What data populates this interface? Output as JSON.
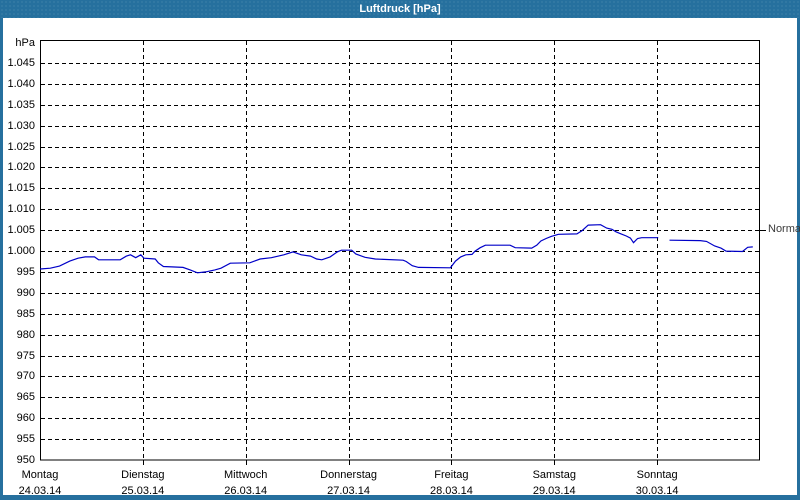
{
  "window": {
    "title": "Luftdruck [hPa]"
  },
  "colors": {
    "titlebar_bg": "#26709e",
    "titlebar_text": "#ffffff",
    "window_border": "#26709e",
    "curve": "#0000c8",
    "grid": "#000000",
    "axis_text": "#000000",
    "normal_text": "#3a3a3a",
    "background": "#ffffff"
  },
  "chart_data": {
    "type": "line",
    "title": "Luftdruck [hPa]",
    "ylabel": "hPa",
    "xlabel": "",
    "grid": "dashed",
    "legend": "none",
    "y_axis": {
      "unit_label": "hPa",
      "min": 950,
      "max": 1050,
      "tick_step": 5,
      "ticks": [
        {
          "value": 1045,
          "label": "1.045"
        },
        {
          "value": 1040,
          "label": "1.040"
        },
        {
          "value": 1035,
          "label": "1.035"
        },
        {
          "value": 1030,
          "label": "1.030"
        },
        {
          "value": 1025,
          "label": "1.025"
        },
        {
          "value": 1020,
          "label": "1.020"
        },
        {
          "value": 1015,
          "label": "1.015"
        },
        {
          "value": 1010,
          "label": "1.010"
        },
        {
          "value": 1005,
          "label": "1.005"
        },
        {
          "value": 1000,
          "label": "1.000"
        },
        {
          "value": 995,
          "label": "995"
        },
        {
          "value": 990,
          "label": "990"
        },
        {
          "value": 985,
          "label": "985"
        },
        {
          "value": 980,
          "label": "980"
        },
        {
          "value": 975,
          "label": "975"
        },
        {
          "value": 970,
          "label": "970"
        },
        {
          "value": 965,
          "label": "965"
        },
        {
          "value": 960,
          "label": "960"
        },
        {
          "value": 955,
          "label": "955"
        },
        {
          "value": 950,
          "label": "950"
        }
      ]
    },
    "x_axis": {
      "unit": "days",
      "range_days": [
        0,
        7
      ],
      "days": [
        {
          "name": "Montag",
          "date": "24.03.14"
        },
        {
          "name": "Dienstag",
          "date": "25.03.14"
        },
        {
          "name": "Mittwoch",
          "date": "26.03.14"
        },
        {
          "name": "Donnerstag",
          "date": "27.03.14"
        },
        {
          "name": "Freitag",
          "date": "28.03.14"
        },
        {
          "name": "Samstag",
          "date": "29.03.14"
        },
        {
          "name": "Sonntag",
          "date": "30.03.14"
        }
      ]
    },
    "normal_marker": {
      "label": "Normal",
      "value": 1005
    },
    "series": [
      {
        "name": "Luftdruck",
        "unit": "hPa",
        "x_unit": "days since Montag 24.03.14",
        "segments": [
          [
            [
              0.0,
              995.7
            ],
            [
              0.1,
              995.9
            ],
            [
              0.19,
              996.4
            ],
            [
              0.29,
              997.6
            ],
            [
              0.37,
              998.3
            ],
            [
              0.44,
              998.6
            ],
            [
              0.53,
              998.6
            ],
            [
              0.57,
              997.9
            ],
            [
              0.78,
              997.9
            ],
            [
              0.84,
              998.8
            ],
            [
              0.88,
              999.1
            ],
            [
              0.93,
              998.4
            ],
            [
              0.98,
              999.1
            ],
            [
              1.01,
              998.3
            ],
            [
              1.12,
              998.1
            ],
            [
              1.15,
              997.2
            ],
            [
              1.2,
              996.3
            ],
            [
              1.39,
              996.1
            ],
            [
              1.46,
              995.5
            ],
            [
              1.53,
              994.8
            ],
            [
              1.61,
              995.0
            ],
            [
              1.7,
              995.5
            ],
            [
              1.76,
              995.9
            ],
            [
              1.85,
              997.1
            ],
            [
              2.04,
              997.2
            ],
            [
              2.14,
              998.1
            ],
            [
              2.25,
              998.4
            ],
            [
              2.37,
              999.1
            ],
            [
              2.46,
              999.8
            ],
            [
              2.54,
              999.1
            ],
            [
              2.63,
              998.8
            ],
            [
              2.69,
              998.1
            ],
            [
              2.74,
              997.9
            ],
            [
              2.82,
              998.6
            ],
            [
              2.89,
              999.8
            ],
            [
              2.93,
              1000.2
            ],
            [
              3.03,
              1000.2
            ],
            [
              3.07,
              999.3
            ],
            [
              3.16,
              998.5
            ],
            [
              3.26,
              998.1
            ],
            [
              3.53,
              997.8
            ],
            [
              3.56,
              997.5
            ],
            [
              3.62,
              996.5
            ],
            [
              3.68,
              996.1
            ],
            [
              3.99,
              996.0
            ],
            [
              4.04,
              997.6
            ],
            [
              4.09,
              998.6
            ],
            [
              4.14,
              999.1
            ],
            [
              4.2,
              999.2
            ],
            [
              4.23,
              1000.0
            ],
            [
              4.28,
              1000.8
            ],
            [
              4.33,
              1001.4
            ],
            [
              4.57,
              1001.4
            ],
            [
              4.62,
              1000.8
            ],
            [
              4.78,
              1000.7
            ],
            [
              4.83,
              1001.4
            ],
            [
              4.87,
              1002.4
            ],
            [
              4.92,
              1003.0
            ],
            [
              4.97,
              1003.5
            ],
            [
              5.04,
              1004.0
            ],
            [
              5.22,
              1004.1
            ],
            [
              5.27,
              1004.9
            ],
            [
              5.33,
              1006.2
            ],
            [
              5.45,
              1006.3
            ],
            [
              5.51,
              1005.5
            ],
            [
              5.56,
              1005.2
            ],
            [
              5.6,
              1004.6
            ],
            [
              5.65,
              1004.1
            ],
            [
              5.7,
              1003.6
            ],
            [
              5.74,
              1003.1
            ],
            [
              5.77,
              1002.0
            ],
            [
              5.81,
              1003.0
            ],
            [
              5.85,
              1003.2
            ],
            [
              6.01,
              1003.2
            ]
          ],
          [
            [
              6.12,
              1002.6
            ],
            [
              6.42,
              1002.5
            ],
            [
              6.48,
              1002.3
            ],
            [
              6.56,
              1001.2
            ],
            [
              6.62,
              1000.7
            ],
            [
              6.67,
              1000.0
            ],
            [
              6.83,
              999.9
            ],
            [
              6.88,
              1000.9
            ],
            [
              6.93,
              1001.0
            ]
          ]
        ]
      }
    ]
  }
}
